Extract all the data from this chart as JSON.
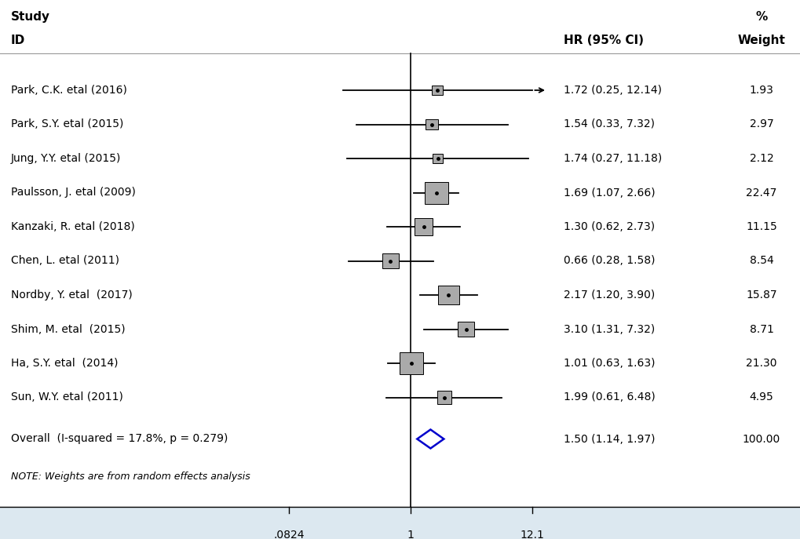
{
  "studies": [
    {
      "label": "Park, C.K. etal (2016)",
      "hr": 1.72,
      "ci_lo": 0.25,
      "ci_hi": 12.14,
      "weight": 1.93,
      "weight_str": "1.93",
      "hr_str": "1.72 (0.25, 12.14)",
      "arrow": true
    },
    {
      "label": "Park, S.Y. etal (2015)",
      "hr": 1.54,
      "ci_lo": 0.33,
      "ci_hi": 7.32,
      "weight": 2.97,
      "weight_str": "2.97",
      "hr_str": "1.54 (0.33, 7.32)",
      "arrow": false
    },
    {
      "label": "Jung, Y.Y. etal (2015)",
      "hr": 1.74,
      "ci_lo": 0.27,
      "ci_hi": 11.18,
      "weight": 2.12,
      "weight_str": "2.12",
      "hr_str": "1.74 (0.27, 11.18)",
      "arrow": false
    },
    {
      "label": "Paulsson, J. etal (2009)",
      "hr": 1.69,
      "ci_lo": 1.07,
      "ci_hi": 2.66,
      "weight": 22.47,
      "weight_str": "22.47",
      "hr_str": "1.69 (1.07, 2.66)",
      "arrow": false
    },
    {
      "label": "Kanzaki, R. etal (2018)",
      "hr": 1.3,
      "ci_lo": 0.62,
      "ci_hi": 2.73,
      "weight": 11.15,
      "weight_str": "11.15",
      "hr_str": "1.30 (0.62, 2.73)",
      "arrow": false
    },
    {
      "label": "Chen, L. etal (2011)",
      "hr": 0.66,
      "ci_lo": 0.28,
      "ci_hi": 1.58,
      "weight": 8.54,
      "weight_str": "8.54",
      "hr_str": "0.66 (0.28, 1.58)",
      "arrow": false
    },
    {
      "label": "Nordby, Y. etal  (2017)",
      "hr": 2.17,
      "ci_lo": 1.2,
      "ci_hi": 3.9,
      "weight": 15.87,
      "weight_str": "15.87",
      "hr_str": "2.17 (1.20, 3.90)",
      "arrow": false
    },
    {
      "label": "Shim, M. etal  (2015)",
      "hr": 3.1,
      "ci_lo": 1.31,
      "ci_hi": 7.32,
      "weight": 8.71,
      "weight_str": "8.71",
      "hr_str": "3.10 (1.31, 7.32)",
      "arrow": false
    },
    {
      "label": "Ha, S.Y. etal  (2014)",
      "hr": 1.01,
      "ci_lo": 0.63,
      "ci_hi": 1.63,
      "weight": 21.3,
      "weight_str": "21.30",
      "hr_str": "1.01 (0.63, 1.63)",
      "arrow": false
    },
    {
      "label": "Sun, W.Y. etal (2011)",
      "hr": 1.99,
      "ci_lo": 0.61,
      "ci_hi": 6.48,
      "weight": 4.95,
      "weight_str": "4.95",
      "hr_str": "1.99 (0.61, 6.48)",
      "arrow": false
    }
  ],
  "overall": {
    "label": "Overall  (I-squared = 17.8%, p = 0.279)",
    "hr": 1.5,
    "ci_lo": 1.14,
    "ci_hi": 1.97,
    "hr_str": "1.50 (1.14, 1.97)",
    "weight_str": "100.00"
  },
  "note": "NOTE: Weights are from random effects analysis",
  "x_tick_vals": [
    0.0824,
    1.0,
    12.1
  ],
  "x_tick_labels": [
    ".0824",
    "1",
    "12.1"
  ],
  "header_study": "Study",
  "header_id": "ID",
  "header_hr": "HR (95% CI)",
  "header_pct": "%",
  "header_weight": "Weight",
  "box_color": "#aaaaaa",
  "diamond_color": "#0000cc",
  "xaxis_bg": "#dce8f0",
  "font_size_header": 11,
  "font_size_body": 10,
  "font_size_note": 9
}
